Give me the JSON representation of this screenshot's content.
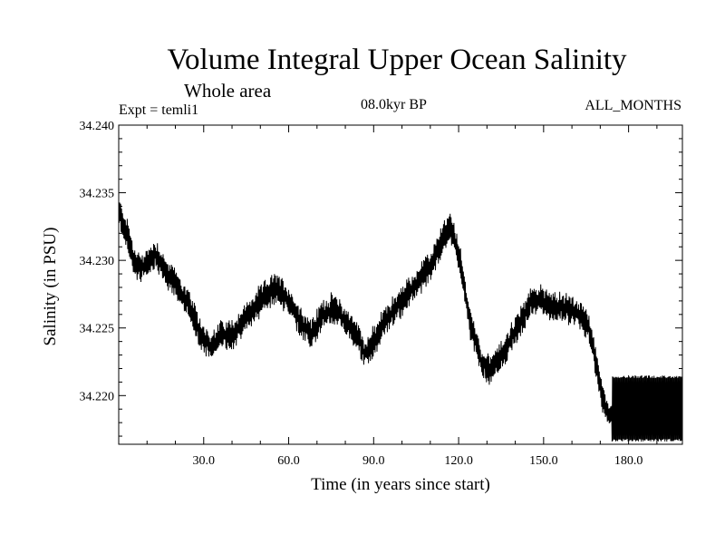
{
  "chart_data": {
    "type": "line",
    "title": "Volume Integral Upper Ocean Salinity",
    "subtitle": "Whole area",
    "experiment": "Expt = temli1",
    "period": "08.0kyr BP",
    "months": "ALL_MONTHS",
    "xlabel": "Time (in years since start)",
    "ylabel": "Salinity (in PSU)",
    "xlim": [
      0,
      199
    ],
    "ylim": [
      34.2164,
      34.24
    ],
    "xticks": [
      30,
      60,
      90,
      120,
      150,
      180
    ],
    "xtick_labels": [
      "30.0",
      "60.0",
      "90.0",
      "120.0",
      "150.0",
      "180.0"
    ],
    "yticks": [
      34.22,
      34.225,
      34.23,
      34.235,
      34.24
    ],
    "ytick_labels": [
      "34.220",
      "34.225",
      "34.230",
      "34.235",
      "34.240"
    ],
    "series": [
      {
        "name": "salinity",
        "trend": {
          "x": [
            0,
            3,
            6,
            9,
            13,
            17,
            21,
            25,
            29,
            33,
            36,
            40,
            44,
            48,
            52,
            56,
            60,
            64,
            68,
            72,
            76,
            80,
            84,
            87,
            90,
            94,
            98,
            102,
            106,
            110,
            114,
            117,
            120,
            124,
            128,
            131,
            134,
            138,
            142,
            146,
            150,
            154,
            158,
            162,
            166,
            169,
            171,
            173,
            176,
            199
          ],
          "y": [
            34.2335,
            34.232,
            34.2295,
            34.2295,
            34.2305,
            34.229,
            34.228,
            34.2265,
            34.2245,
            34.2235,
            34.2245,
            34.2245,
            34.2255,
            34.2265,
            34.2275,
            34.228,
            34.227,
            34.2255,
            34.2245,
            34.226,
            34.2265,
            34.2255,
            34.2245,
            34.223,
            34.224,
            34.2255,
            34.2265,
            34.2275,
            34.2285,
            34.2295,
            34.2315,
            34.2325,
            34.2305,
            34.2255,
            34.2225,
            34.222,
            34.2225,
            34.224,
            34.2255,
            34.227,
            34.227,
            34.2265,
            34.2265,
            34.226,
            34.225,
            34.222,
            34.2195,
            34.2185,
            34.2185,
            34.2185
          ]
        },
        "oscillation_amplitude": 0.0011,
        "final_regime": {
          "x_start": 174,
          "min": 34.2166,
          "max": 34.2215
        }
      }
    ]
  }
}
